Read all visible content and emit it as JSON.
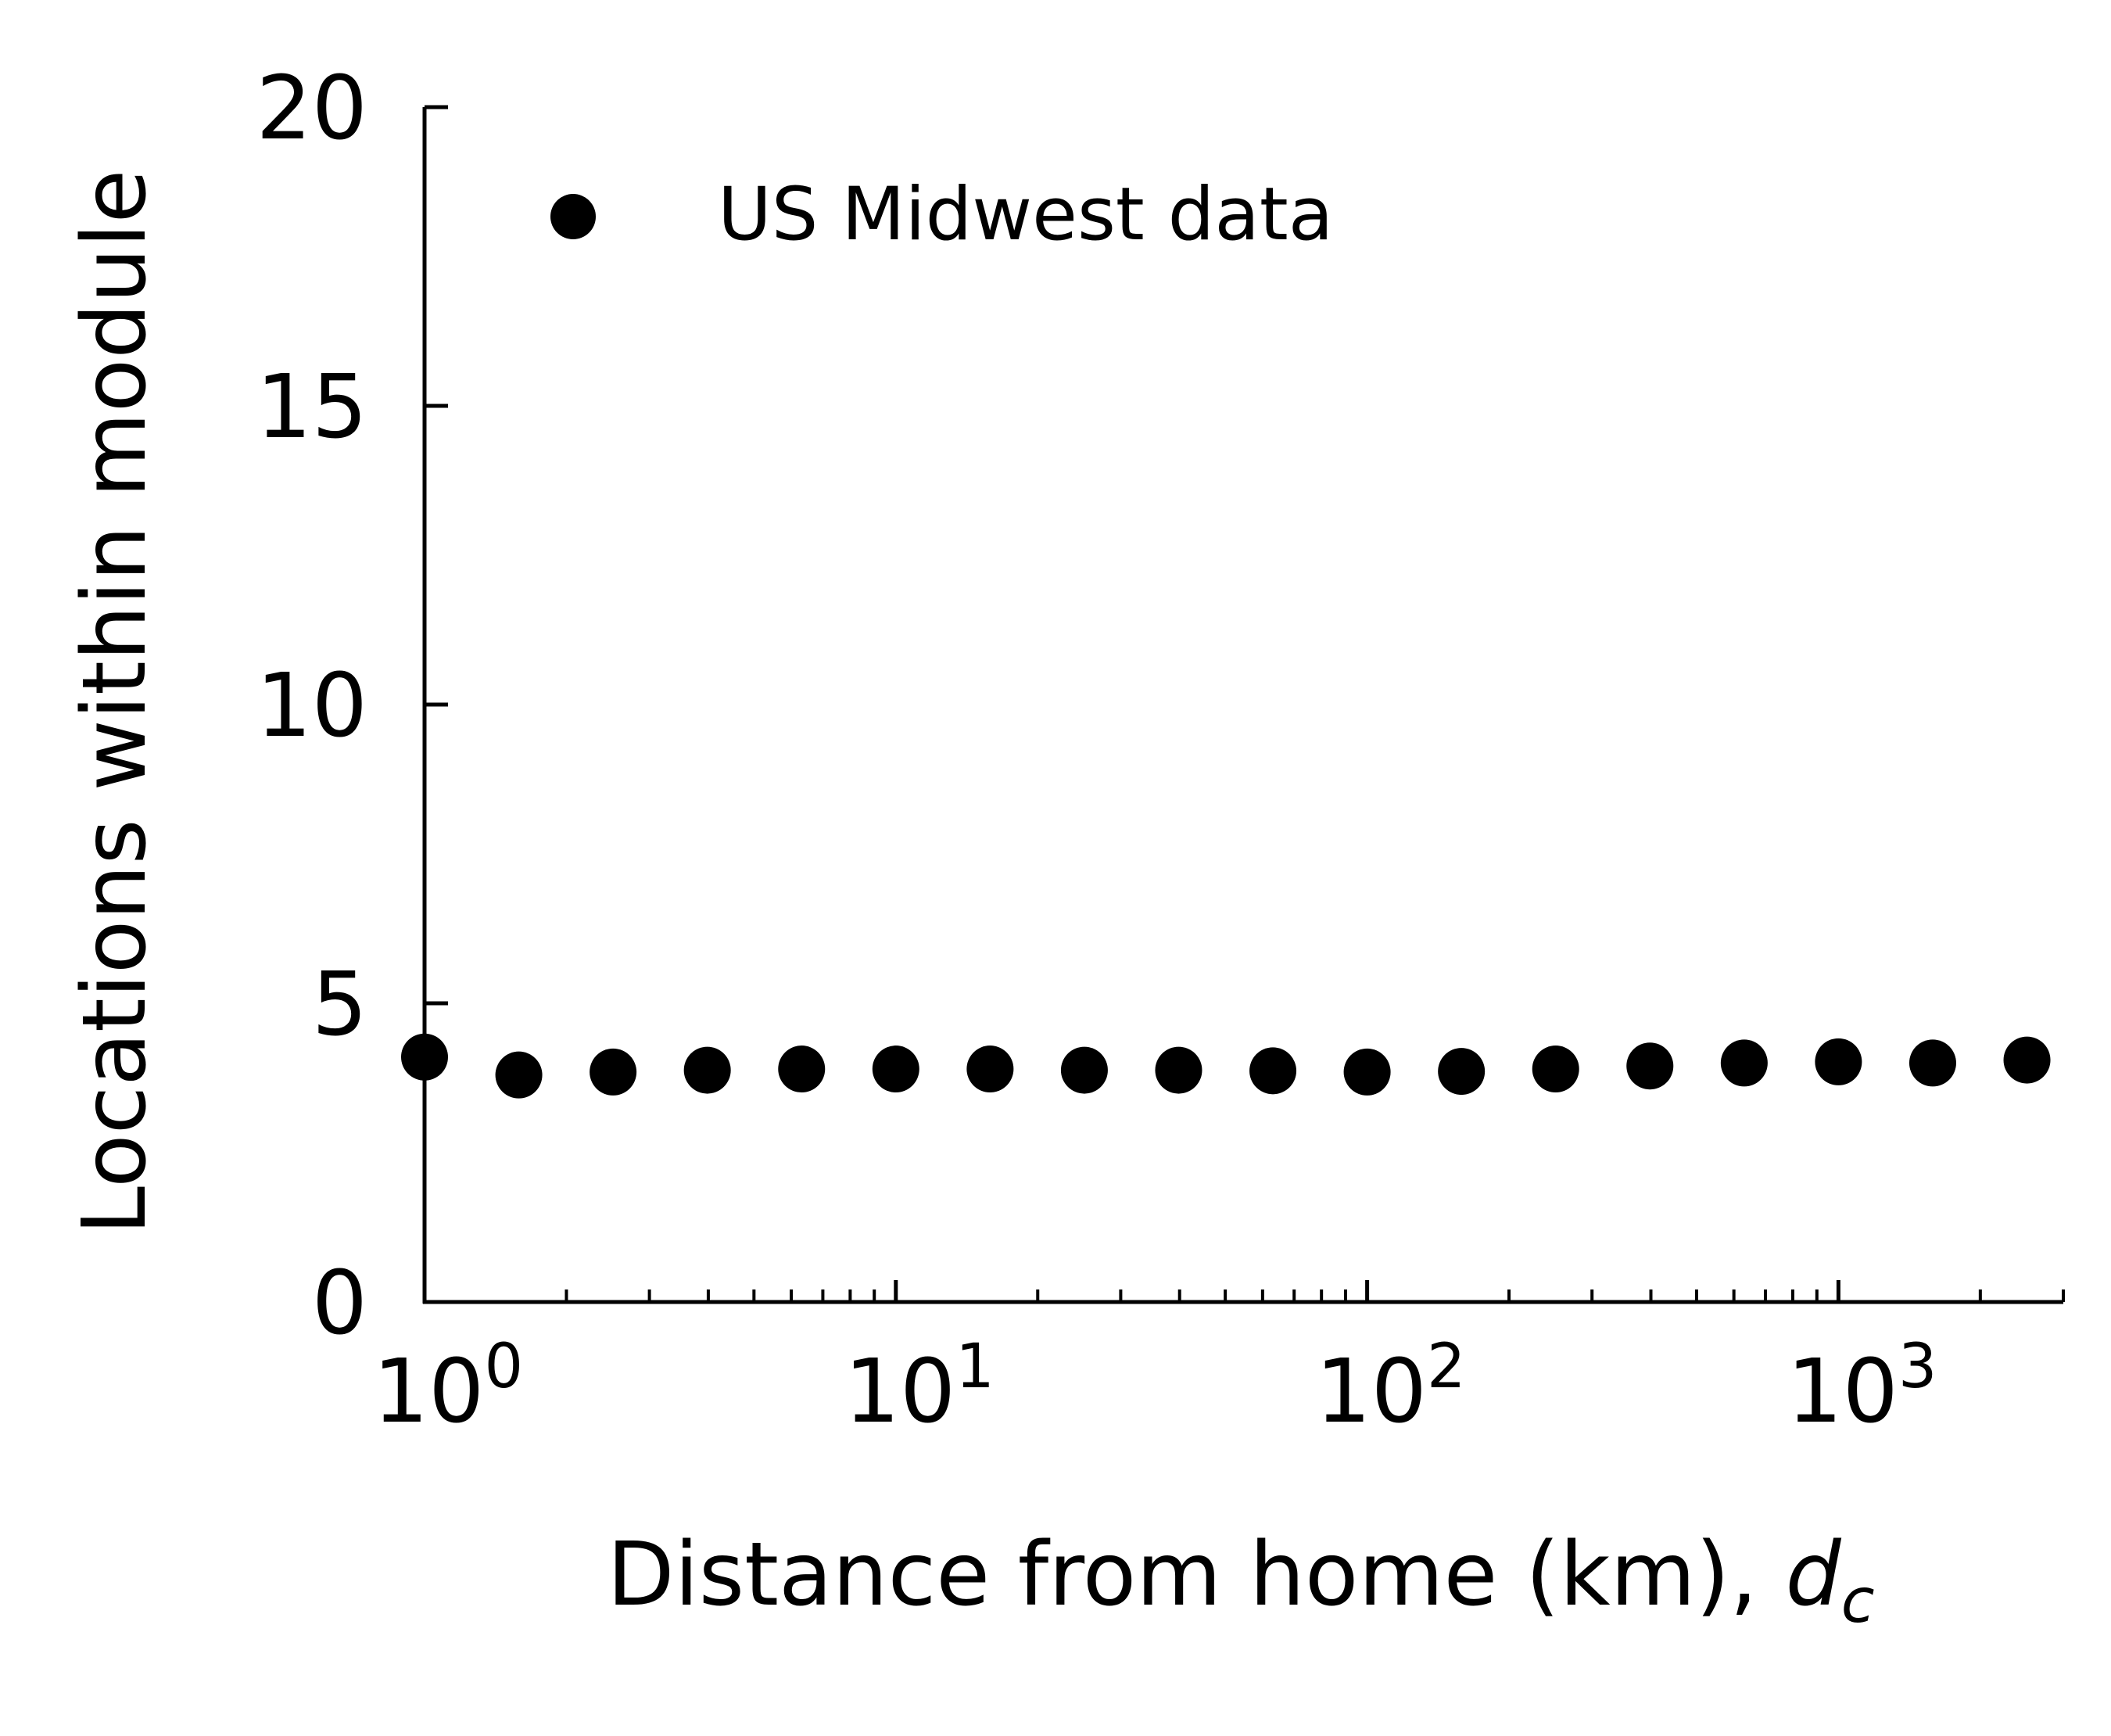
{
  "chart_data": {
    "type": "scatter",
    "series": [
      {
        "name": "US Midwest data",
        "color": "#000000",
        "marker": "filled-circle",
        "x": [
          1.0,
          1.585,
          2.512,
          3.981,
          6.31,
          10.0,
          15.85,
          25.12,
          39.81,
          63.1,
          100.0,
          158.5,
          251.2,
          398.1,
          631.0,
          1000.0,
          1585.0,
          2512.0
        ],
        "y": [
          4.1,
          3.8,
          3.85,
          3.88,
          3.9,
          3.9,
          3.9,
          3.88,
          3.88,
          3.87,
          3.85,
          3.86,
          3.9,
          3.95,
          4.0,
          4.02,
          4.0,
          4.05
        ]
      }
    ],
    "xlabel_main": "Distance from home (km), ",
    "xlabel_var": "d",
    "xlabel_sub": "c",
    "ylabel": "Locations within module",
    "xscale": "log",
    "xlim": [
      1,
      3000
    ],
    "ylim": [
      0,
      20
    ],
    "xticks": [
      {
        "value": 1,
        "base": "10",
        "exp": "0"
      },
      {
        "value": 10,
        "base": "10",
        "exp": "1"
      },
      {
        "value": 100,
        "base": "10",
        "exp": "2"
      },
      {
        "value": 1000,
        "base": "10",
        "exp": "3"
      }
    ],
    "yticks": [
      {
        "value": 0,
        "label": "0"
      },
      {
        "value": 5,
        "label": "5"
      },
      {
        "value": 10,
        "label": "10"
      },
      {
        "value": 15,
        "label": "15"
      },
      {
        "value": 20,
        "label": "20"
      }
    ],
    "grid": false,
    "legend_position": "top-left"
  }
}
